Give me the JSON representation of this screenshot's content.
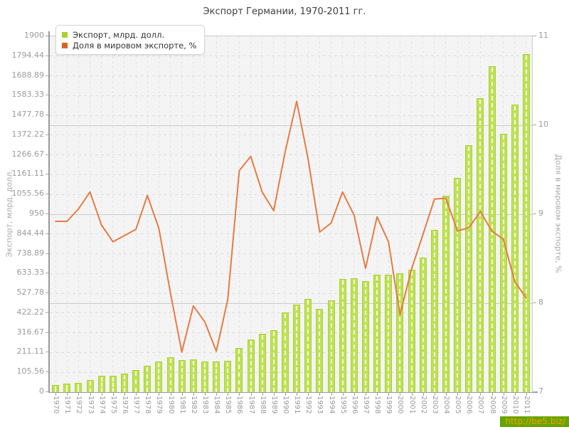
{
  "title": "Экспорт Германии, 1970-2011 гг.",
  "legend": {
    "items": [
      {
        "label": "Экспорт, млрд. долл.",
        "color": "#a9d22c"
      },
      {
        "label": "Доля в мировом экспорте, %",
        "color": "#d96327"
      }
    ]
  },
  "watermark": {
    "text": "http://be5.biz/",
    "bg_color": "#64a600",
    "text_color": "#ff9e00"
  },
  "chart_data": {
    "type": "bar",
    "title": "Экспорт Германии, 1970-2011 гг.",
    "categories": [
      "1970",
      "1971",
      "1972",
      "1973",
      "1974",
      "1975",
      "1976",
      "1977",
      "1978",
      "1979",
      "1980",
      "1981",
      "1982",
      "1983",
      "1984",
      "1985",
      "1986",
      "1987",
      "1988",
      "1989",
      "1990",
      "1991",
      "1992",
      "1993",
      "1994",
      "1995",
      "1996",
      "1997",
      "1998",
      "1999",
      "2000",
      "2001",
      "2002",
      "2003",
      "2004",
      "2005",
      "2006",
      "2007",
      "2008",
      "2009",
      "2010",
      "2011"
    ],
    "series": [
      {
        "name": "Экспорт, млрд. долл.",
        "type": "bar",
        "axis": "left",
        "color": "#bfe155",
        "values": [
          38,
          44,
          51,
          66,
          86,
          89,
          98,
          118,
          140,
          165,
          186,
          170,
          173,
          164,
          162,
          168,
          234,
          281,
          310,
          332,
          424,
          466,
          497,
          443,
          490,
          603,
          607,
          592,
          626,
          628,
          635,
          654,
          717,
          865,
          1050,
          1145,
          1320,
          1570,
          1740,
          1380,
          1535,
          1805
        ]
      },
      {
        "name": "Доля в мировом экспорте, %",
        "type": "line",
        "axis": "right",
        "color": "#e57b44",
        "values": [
          8.92,
          8.92,
          9.06,
          9.25,
          8.88,
          8.69,
          8.76,
          8.83,
          9.21,
          8.84,
          8.12,
          7.45,
          7.97,
          7.79,
          7.46,
          8.04,
          9.49,
          9.65,
          9.25,
          9.04,
          9.7,
          10.27,
          9.62,
          8.8,
          8.9,
          9.25,
          8.99,
          8.39,
          8.97,
          8.69,
          7.87,
          8.38,
          8.77,
          9.17,
          9.18,
          8.81,
          8.85,
          9.03,
          8.81,
          8.72,
          8.24,
          8.06
        ]
      }
    ],
    "left_axis": {
      "label": "Экспорт, млрд. долл.",
      "min": 0,
      "max": 1900,
      "tick_labels": [
        "0",
        "105.56",
        "211.11",
        "316.67",
        "422.22",
        "527.78",
        "633.33",
        "738.89",
        "844.44",
        "950",
        "1055.56",
        "1161.11",
        "1266.67",
        "1372.22",
        "1477.78",
        "1583.33",
        "1688.89",
        "1794.44",
        "1900"
      ]
    },
    "right_axis": {
      "label": "Доля в мировом экспорте, %",
      "min": 7,
      "max": 11,
      "tick_labels": [
        "7",
        "8",
        "9",
        "10",
        "11"
      ]
    },
    "grid": "dashed",
    "legend_position": "top-left"
  }
}
